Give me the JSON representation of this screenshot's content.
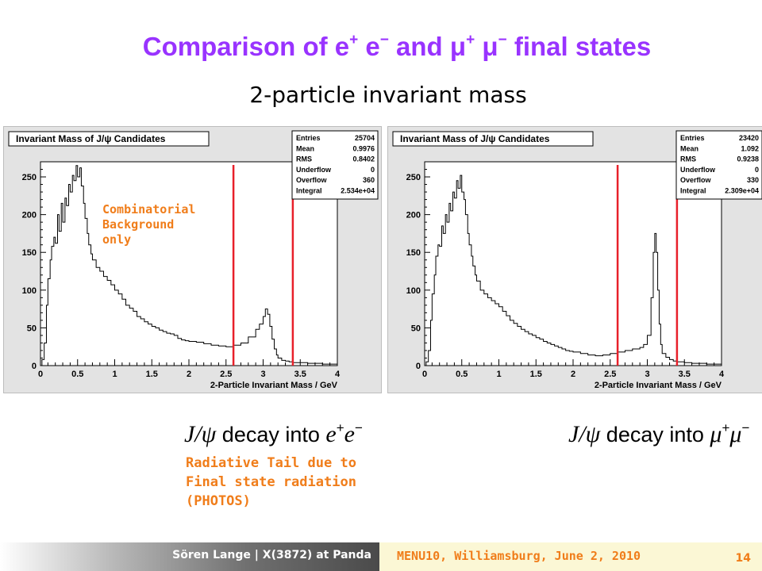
{
  "slide": {
    "title_part1": "Comparison of e",
    "title_sup1": "+",
    "title_part2": " e",
    "title_sup2": "−",
    "title_part3": " and μ",
    "title_sup3": "+",
    "title_part4": " μ",
    "title_sup4": "−",
    "title_part5": " final states",
    "subtitle": "2-particle invariant mass",
    "annotation_background": [
      "Combinatorial",
      "Background",
      "only"
    ],
    "annotation_radiative": [
      "Radiative Tail due to",
      "Final state radiation",
      "(PHOTOS)"
    ],
    "decay_left": {
      "jpsi": "J/ψ",
      "text": " decay into ",
      "p1": "e",
      "s1": "+",
      "p2": "e",
      "s2": "−"
    },
    "decay_right": {
      "jpsi": "J/ψ",
      "text": " decay into ",
      "p1": "μ",
      "s1": "+",
      "p2": "μ",
      "s2": "−"
    },
    "footer_author": "Sören Lange | X(3872) at Panda",
    "footer_conference": "MENU10, Williamsburg, June 2, 2010",
    "page_number": "14",
    "colors": {
      "title": "#9933ff",
      "annotation": "#f07d1a",
      "cut_line": "#e8202a",
      "frame": "#e3e3e3",
      "histogram": "#000000"
    }
  },
  "chart_data": [
    {
      "type": "line",
      "title": "Invariant Mass of J/ψ Candidates",
      "xlabel": "2-Particle Invariant Mass / GeV",
      "ylabel": "",
      "xlim": [
        0,
        4
      ],
      "ylim": [
        0,
        270
      ],
      "x_ticks": [
        "0",
        "0.5",
        "1",
        "1.5",
        "2",
        "2.5",
        "3",
        "3.5",
        "4"
      ],
      "y_ticks": [
        "0",
        "50",
        "100",
        "150",
        "200",
        "250"
      ],
      "stats": [
        {
          "label": "Entries",
          "value": "25704"
        },
        {
          "label": "Mean",
          "value": "0.9976"
        },
        {
          "label": "RMS",
          "value": "0.8402"
        },
        {
          "label": "Underflow",
          "value": "0"
        },
        {
          "label": "Overflow",
          "value": "360"
        },
        {
          "label": "Integral",
          "value": "2.534e+04"
        }
      ],
      "cut_lines": [
        2.6,
        3.4
      ],
      "x": [
        0.02,
        0.05,
        0.08,
        0.1,
        0.13,
        0.15,
        0.18,
        0.2,
        0.23,
        0.25,
        0.28,
        0.3,
        0.33,
        0.35,
        0.38,
        0.4,
        0.43,
        0.45,
        0.48,
        0.5,
        0.53,
        0.55,
        0.58,
        0.6,
        0.63,
        0.65,
        0.68,
        0.7,
        0.75,
        0.8,
        0.85,
        0.9,
        0.95,
        1.0,
        1.05,
        1.1,
        1.15,
        1.2,
        1.25,
        1.3,
        1.35,
        1.4,
        1.45,
        1.5,
        1.55,
        1.6,
        1.65,
        1.7,
        1.75,
        1.8,
        1.85,
        1.9,
        1.95,
        2.0,
        2.1,
        2.2,
        2.3,
        2.4,
        2.5,
        2.6,
        2.7,
        2.8,
        2.9,
        2.95,
        3.0,
        3.03,
        3.06,
        3.09,
        3.12,
        3.15,
        3.18,
        3.2,
        3.25,
        3.3,
        3.35,
        3.4,
        3.5,
        3.6,
        3.7,
        3.8,
        3.9,
        4.0
      ],
      "values": [
        8,
        30,
        80,
        115,
        140,
        158,
        170,
        162,
        200,
        178,
        215,
        190,
        222,
        212,
        240,
        230,
        252,
        245,
        265,
        250,
        262,
        238,
        215,
        195,
        175,
        160,
        148,
        140,
        130,
        125,
        118,
        113,
        107,
        100,
        95,
        88,
        80,
        76,
        72,
        65,
        62,
        58,
        55,
        52,
        50,
        47,
        45,
        43,
        42,
        40,
        36,
        34,
        33,
        32,
        31,
        29,
        27,
        26,
        25,
        27,
        30,
        38,
        48,
        55,
        65,
        75,
        68,
        52,
        35,
        22,
        14,
        10,
        7,
        6,
        5,
        4,
        4,
        3,
        3,
        2,
        2,
        2
      ]
    },
    {
      "type": "line",
      "title": "Invariant Mass of J/ψ Candidates",
      "xlabel": "2-Particle Invariant Mass / GeV",
      "ylabel": "",
      "xlim": [
        0,
        4
      ],
      "ylim": [
        0,
        270
      ],
      "x_ticks": [
        "0",
        "0.5",
        "1",
        "1.5",
        "2",
        "2.5",
        "3",
        "3.5",
        "4"
      ],
      "y_ticks": [
        "0",
        "50",
        "100",
        "150",
        "200",
        "250"
      ],
      "stats": [
        {
          "label": "Entries",
          "value": "23420"
        },
        {
          "label": "Mean",
          "value": "1.092"
        },
        {
          "label": "RMS",
          "value": "0.9238"
        },
        {
          "label": "Underflow",
          "value": "0"
        },
        {
          "label": "Overflow",
          "value": "330"
        },
        {
          "label": "Integral",
          "value": "2.309e+04"
        }
      ],
      "cut_lines": [
        2.6,
        3.4
      ],
      "x": [
        0.02,
        0.05,
        0.08,
        0.1,
        0.13,
        0.15,
        0.18,
        0.2,
        0.23,
        0.25,
        0.28,
        0.3,
        0.33,
        0.35,
        0.38,
        0.4,
        0.43,
        0.45,
        0.48,
        0.5,
        0.53,
        0.55,
        0.58,
        0.6,
        0.63,
        0.65,
        0.68,
        0.7,
        0.75,
        0.8,
        0.85,
        0.9,
        0.95,
        1.0,
        1.05,
        1.1,
        1.15,
        1.2,
        1.25,
        1.3,
        1.35,
        1.4,
        1.45,
        1.5,
        1.55,
        1.6,
        1.65,
        1.7,
        1.75,
        1.8,
        1.85,
        1.9,
        1.95,
        2.0,
        2.1,
        2.2,
        2.3,
        2.4,
        2.5,
        2.6,
        2.7,
        2.8,
        2.9,
        2.95,
        3.0,
        3.05,
        3.08,
        3.1,
        3.12,
        3.14,
        3.16,
        3.18,
        3.2,
        3.25,
        3.3,
        3.35,
        3.4,
        3.5,
        3.6,
        3.7,
        3.8,
        3.9,
        4.0
      ],
      "values": [
        5,
        20,
        60,
        95,
        120,
        145,
        160,
        158,
        185,
        175,
        200,
        190,
        215,
        205,
        230,
        222,
        245,
        235,
        252,
        230,
        220,
        200,
        175,
        160,
        145,
        132,
        120,
        112,
        100,
        95,
        90,
        86,
        82,
        78,
        72,
        66,
        60,
        56,
        52,
        48,
        45,
        42,
        40,
        37,
        35,
        32,
        30,
        28,
        26,
        24,
        22,
        20,
        19,
        18,
        16,
        14,
        13,
        14,
        16,
        18,
        20,
        22,
        24,
        28,
        40,
        90,
        150,
        175,
        150,
        100,
        55,
        28,
        16,
        11,
        8,
        6,
        5,
        4,
        3,
        3,
        2,
        2,
        2
      ]
    }
  ]
}
